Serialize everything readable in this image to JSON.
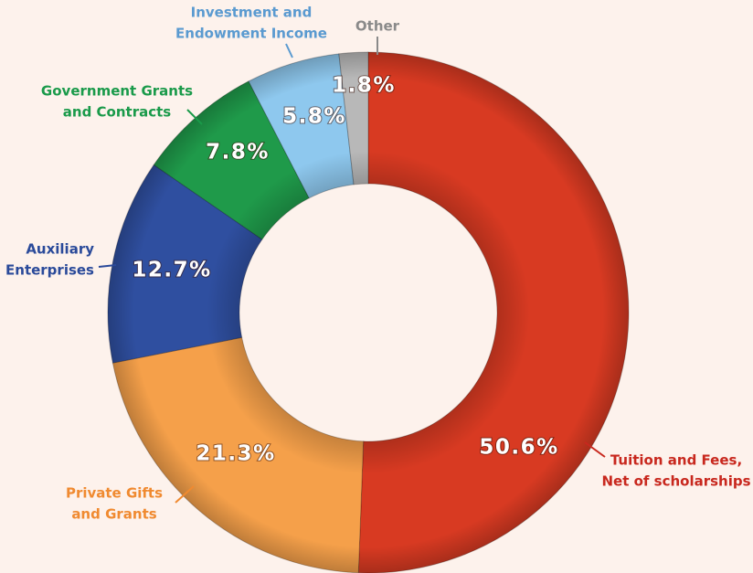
{
  "chart_data": {
    "type": "donut",
    "categories": [
      [
        "Tuition and Fees,",
        "Net of scholarships"
      ],
      [
        "Private Gifts",
        "and Grants"
      ],
      [
        "Auxiliary",
        "Enterprises"
      ],
      [
        "Government Grants",
        "and Contracts"
      ],
      [
        "Investment and",
        "Endowment Income"
      ],
      [
        "Other"
      ]
    ],
    "values": [
      50.6,
      21.3,
      12.7,
      7.8,
      5.8,
      1.8
    ],
    "value_labels": [
      "50.6%",
      "21.3%",
      "12.7%",
      "7.8%",
      "5.8%",
      "1.8%"
    ],
    "colors": [
      "#d83a22",
      "#f5a04a",
      "#2f4fa0",
      "#1f9a4a",
      "#8ec8ee",
      "#b8b8b8"
    ],
    "label_colors": [
      "#c8281e",
      "#f08a30",
      "#2a4a9a",
      "#1a9a4a",
      "#5a9ad0",
      "#8a8a8a"
    ]
  }
}
